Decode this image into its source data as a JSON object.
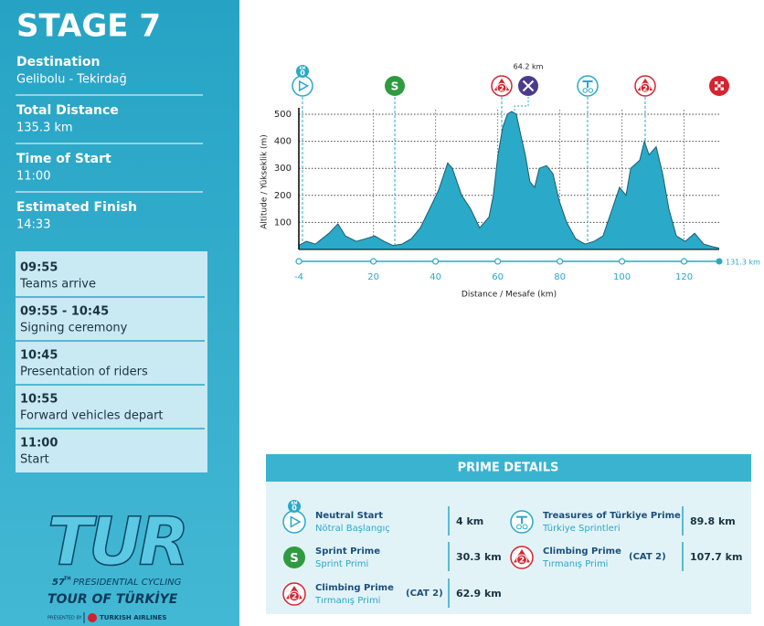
{
  "sidebar": {
    "title": "STAGE 7",
    "facts": [
      {
        "label": "Destination",
        "value": "Gelibolu - Tekirdağ"
      },
      {
        "label": "Total Distance",
        "value": "135.3 km"
      },
      {
        "label": "Time of Start",
        "value": "11:00"
      },
      {
        "label": "Estimated Finish",
        "value": "14:33"
      }
    ],
    "schedule": [
      {
        "time": "09:55",
        "event": "Teams arrive"
      },
      {
        "time": "09:55 - 10:45",
        "event": "Signing ceremony"
      },
      {
        "time": "10:45",
        "event": "Presentation of riders"
      },
      {
        "time": "10:55",
        "event": "Forward vehicles depart"
      },
      {
        "time": "11:00",
        "event": "Start"
      }
    ]
  },
  "logo": {
    "mark": "TUR",
    "edition": "57",
    "edition_suffix": "TH",
    "line1": "PRESIDENTIAL CYCLING",
    "line2": "TOUR OF TÜRKİYE",
    "presented": "PRESENTED BY",
    "sponsor": "TURKISH AIRLINES"
  },
  "icon_text": {
    "km": "KM",
    "zero": "0",
    "sprint": "S",
    "climb": "2"
  },
  "chart_data": {
    "type": "area",
    "x_label": "Distance / Mesafe  (km)",
    "y_label": "Altitude / Yükseklik (m)",
    "x": [
      -4,
      -1.6,
      1.3,
      5.7,
      8.6,
      11,
      14.5,
      17.5,
      20.4,
      23.4,
      26.3,
      29.2,
      32.2,
      35.1,
      38.1,
      41,
      43.9,
      45.4,
      48.4,
      51.3,
      54.2,
      57.2,
      58.6,
      60.1,
      61.6,
      63.1,
      64.5,
      66,
      67.5,
      68.9,
      70.4,
      71.9,
      73.4,
      75.7,
      77.8,
      79.8,
      82.2,
      85.1,
      88.1,
      91,
      93.9,
      96.9,
      99.2,
      101.3,
      102.8,
      105.7,
      107.2,
      108.7,
      111,
      113.1,
      115.1,
      117.5,
      120.4,
      123.4,
      126.3,
      129.2,
      131.3
    ],
    "values": [
      15,
      30,
      20,
      60,
      95,
      50,
      30,
      40,
      50,
      30,
      15,
      20,
      40,
      80,
      150,
      220,
      320,
      300,
      200,
      150,
      80,
      120,
      200,
      350,
      450,
      500,
      510,
      500,
      420,
      350,
      250,
      230,
      300,
      310,
      280,
      180,
      100,
      40,
      20,
      30,
      50,
      150,
      230,
      200,
      300,
      330,
      400,
      350,
      380,
      280,
      150,
      50,
      30,
      60,
      20,
      10,
      5
    ],
    "color": "#2aaac8",
    "xlim": [
      -4,
      131.3
    ],
    "ylim": [
      0,
      500
    ],
    "xticks": [
      -4,
      20,
      40,
      60,
      80,
      100,
      120
    ],
    "yticks": [
      100,
      200,
      300,
      400,
      500
    ],
    "grid": true,
    "end_label": "131.3 km",
    "annotation": "64.2 km"
  },
  "prime_details": {
    "title": "PRIME DETAILS",
    "items": [
      {
        "name": "Neutral Start",
        "name_tr": "Nötral Başlangıç",
        "distance": "4 km"
      },
      {
        "name": "Sprint Prime",
        "name_tr": "Sprint Primi",
        "distance": "30.3 km"
      },
      {
        "name": "Climbing Prime",
        "name_tr": "Tırmanış Primi",
        "category": "(CAT 2)",
        "distance": "62.9 km"
      },
      {
        "name": "Treasures of Türkiye Prime",
        "name_tr": "Türkiye Sprintleri",
        "distance": "89.8 km"
      },
      {
        "name": "Climbing Prime",
        "name_tr": "Tırmanış Primi",
        "category": "(CAT 2)",
        "distance": "107.7 km"
      }
    ]
  }
}
